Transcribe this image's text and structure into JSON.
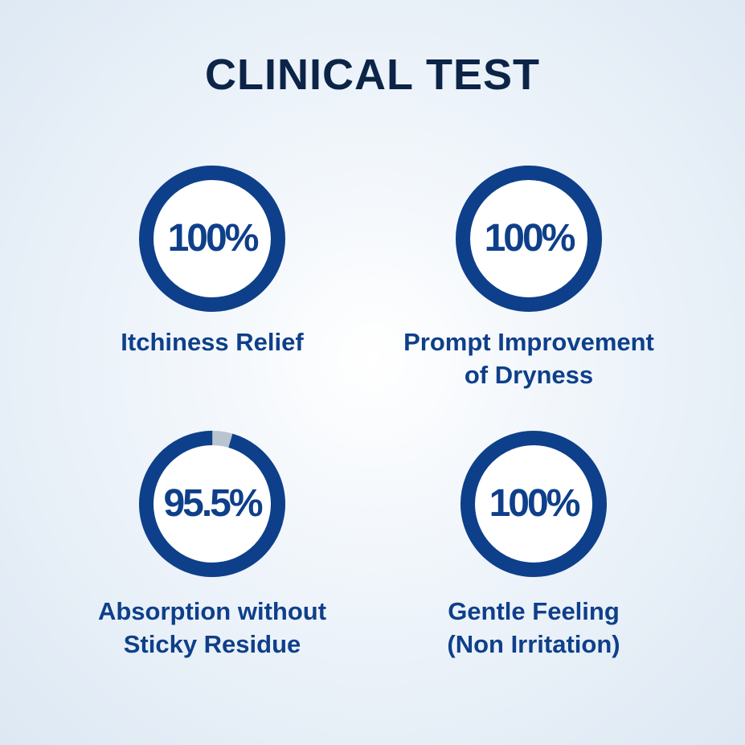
{
  "title": "CLINICAL TEST",
  "colors": {
    "ring": "#0e3f8a",
    "ring_remainder": "#b8c4cf",
    "title": "#0b2447"
  },
  "stats": [
    {
      "value_label": "100%",
      "value": 100,
      "label_lines": [
        "Itchiness Relief"
      ]
    },
    {
      "value_label": "100%",
      "value": 100,
      "label_lines": [
        "Prompt Improvement",
        "of Dryness"
      ]
    },
    {
      "value_label": "95.5%",
      "value": 95.5,
      "label_lines": [
        "Absorption without",
        "Sticky Residue"
      ]
    },
    {
      "value_label": "100%",
      "value": 100,
      "label_lines": [
        "Gentle Feeling",
        "(Non Irritation)"
      ]
    }
  ]
}
